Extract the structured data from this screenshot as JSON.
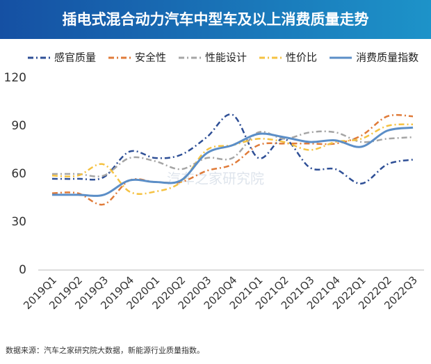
{
  "chart_data": {
    "type": "line",
    "title": "插电式混合动力汽车中型车及以上消费质量走势",
    "source": "数据来源：汽车之家研究院大数据，新能源行业质量指数。",
    "watermark": "汽车之家研究院",
    "categories": [
      "2019Q1",
      "2019Q2",
      "2019Q3",
      "2019Q4",
      "2020Q1",
      "2020Q2",
      "2020Q3",
      "2020Q4",
      "2021Q1",
      "2021Q2",
      "2021Q3",
      "2021Q4",
      "2022Q1",
      "2022Q2",
      "2022Q3"
    ],
    "series": [
      {
        "name": "感官质量",
        "color": "#2e4f96",
        "dash": "8 4 2 4",
        "values": [
          57,
          57,
          58,
          74,
          70,
          72,
          83,
          97,
          70,
          82,
          64,
          63,
          54,
          66,
          69
        ]
      },
      {
        "name": "安全性",
        "color": "#e07b39",
        "dash": "8 4 2 4",
        "values": [
          48,
          48,
          41,
          56,
          55,
          55,
          62,
          66,
          78,
          79,
          79,
          79,
          84,
          96,
          96
        ]
      },
      {
        "name": "性能设计",
        "color": "#a5a5a5",
        "dash": "8 4 2 4",
        "values": [
          60,
          60,
          59,
          70,
          68,
          63,
          70,
          70,
          86,
          82,
          86,
          86,
          80,
          82,
          83
        ]
      },
      {
        "name": "性价比",
        "color": "#f5c242",
        "dash": "8 4 2 4",
        "values": [
          59,
          59,
          66,
          49,
          49,
          55,
          75,
          78,
          82,
          80,
          75,
          80,
          82,
          90,
          91
        ]
      },
      {
        "name": "消费质量指数",
        "color": "#5b8ec7",
        "dash": "",
        "values": [
          47,
          47,
          47,
          56,
          55,
          56,
          73,
          78,
          85,
          83,
          80,
          81,
          77,
          87,
          89
        ]
      }
    ],
    "ylim": [
      0,
      120
    ],
    "yticks": [
      0,
      30,
      60,
      90,
      120
    ],
    "grid": false
  }
}
